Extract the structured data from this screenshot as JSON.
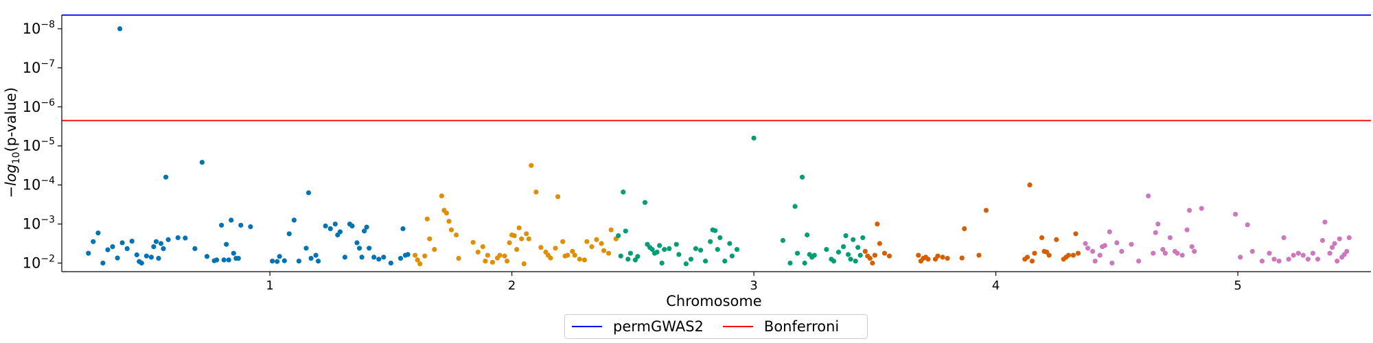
{
  "chart_data": {
    "type": "scatter",
    "title": "",
    "xlabel": "Chromosome",
    "ylabel": "-log10(p-value)",
    "yscale": "log",
    "y_tick_labels": [
      "10^-2",
      "10^-3",
      "10^-4",
      "10^-5",
      "10^-6",
      "10^-7",
      "10^-8"
    ],
    "ylim_exponent": [
      -1.78,
      -8.35
    ],
    "x_tick_labels": [
      "1",
      "2",
      "3",
      "4",
      "5"
    ],
    "x_tick_positions": [
      1,
      2,
      3,
      4,
      5
    ],
    "chromosome_ranges": [
      {
        "name": "1",
        "start": 0.24,
        "end": 1.58,
        "color": "#0173b2"
      },
      {
        "name": "2",
        "start": 1.58,
        "end": 2.62,
        "color": "#de8f05"
      },
      {
        "name": "3",
        "start": 2.62,
        "end": 3.56,
        "color": "#029e73"
      },
      {
        "name": "4",
        "start": 3.56,
        "end": 4.35,
        "color": "#d55e00"
      },
      {
        "name": "5",
        "start": 4.35,
        "end": 5.43,
        "color": "#cc78bc"
      }
    ],
    "thresholds": [
      {
        "name": "permGWAS2",
        "p_value_exponent": -8.35,
        "color": "#0000ff"
      },
      {
        "name": "Bonferroni",
        "p_value_exponent": -5.65,
        "color": "#ff0000"
      }
    ],
    "series": [
      {
        "name": "1",
        "color": "#0173b2",
        "points": [
          [
            0.25,
            -2.25
          ],
          [
            0.27,
            -2.55
          ],
          [
            0.29,
            -2.77
          ],
          [
            0.31,
            -2.0
          ],
          [
            0.33,
            -2.34
          ],
          [
            0.35,
            -2.42
          ],
          [
            0.37,
            -2.13
          ],
          [
            0.38,
            -8.0
          ],
          [
            0.39,
            -2.52
          ],
          [
            0.41,
            -2.37
          ],
          [
            0.43,
            -2.56
          ],
          [
            0.45,
            -2.21
          ],
          [
            0.46,
            -2.04
          ],
          [
            0.47,
            -2.0
          ],
          [
            0.49,
            -2.18
          ],
          [
            0.51,
            -2.15
          ],
          [
            0.52,
            -2.42
          ],
          [
            0.53,
            -2.55
          ],
          [
            0.54,
            -2.12
          ],
          [
            0.55,
            -2.5
          ],
          [
            0.56,
            -2.37
          ],
          [
            0.57,
            -4.2
          ],
          [
            0.58,
            -2.6
          ],
          [
            0.62,
            -2.65
          ],
          [
            0.65,
            -2.64
          ],
          [
            0.69,
            -2.37
          ],
          [
            0.72,
            -4.58
          ],
          [
            0.74,
            -2.17
          ],
          [
            0.77,
            -2.06
          ],
          [
            0.78,
            -2.08
          ],
          [
            0.8,
            -2.97
          ],
          [
            0.81,
            -2.08
          ],
          [
            0.82,
            -2.48
          ],
          [
            0.83,
            -2.08
          ],
          [
            0.84,
            -3.1
          ],
          [
            0.85,
            -2.25
          ],
          [
            0.86,
            -2.12
          ],
          [
            0.87,
            -2.12
          ],
          [
            0.88,
            -2.97
          ],
          [
            0.92,
            -2.93
          ],
          [
            1.01,
            -2.05
          ],
          [
            1.03,
            -2.04
          ],
          [
            1.04,
            -2.17
          ],
          [
            1.06,
            -2.06
          ],
          [
            1.08,
            -2.75
          ],
          [
            1.1,
            -3.1
          ],
          [
            1.12,
            -2.05
          ],
          [
            1.15,
            -2.38
          ],
          [
            1.16,
            -3.8
          ],
          [
            1.17,
            -2.12
          ],
          [
            1.19,
            -2.2
          ],
          [
            1.2,
            -2.05
          ],
          [
            1.23,
            -2.95
          ],
          [
            1.25,
            -2.88
          ],
          [
            1.27,
            -3.0
          ],
          [
            1.28,
            -2.72
          ],
          [
            1.29,
            -2.8
          ],
          [
            1.31,
            -2.15
          ],
          [
            1.33,
            -3.0
          ],
          [
            1.34,
            -2.95
          ],
          [
            1.36,
            -2.52
          ],
          [
            1.37,
            -2.38
          ],
          [
            1.38,
            -2.15
          ],
          [
            1.39,
            -2.82
          ],
          [
            1.4,
            -2.92
          ],
          [
            1.41,
            -2.38
          ],
          [
            1.43,
            -2.15
          ],
          [
            1.45,
            -2.1
          ],
          [
            1.47,
            -2.15
          ],
          [
            1.5,
            -2.0
          ],
          [
            1.54,
            -2.12
          ],
          [
            1.55,
            -2.88
          ],
          [
            1.56,
            -2.2
          ],
          [
            1.57,
            -2.22
          ]
        ]
      },
      {
        "name": "2",
        "color": "#de8f05",
        "points": [
          [
            1.6,
            -2.2
          ],
          [
            1.61,
            -2.08
          ],
          [
            1.62,
            -1.98
          ],
          [
            1.64,
            -2.18
          ],
          [
            1.65,
            -3.13
          ],
          [
            1.66,
            -2.62
          ],
          [
            1.68,
            -2.35
          ],
          [
            1.71,
            -3.72
          ],
          [
            1.72,
            -3.35
          ],
          [
            1.73,
            -3.28
          ],
          [
            1.74,
            -3.07
          ],
          [
            1.75,
            -2.85
          ],
          [
            1.77,
            -2.72
          ],
          [
            1.78,
            -2.12
          ],
          [
            1.84,
            -2.53
          ],
          [
            1.86,
            -2.28
          ],
          [
            1.88,
            -2.42
          ],
          [
            1.89,
            -2.05
          ],
          [
            1.9,
            -2.2
          ],
          [
            1.92,
            -2.02
          ],
          [
            1.94,
            -2.13
          ],
          [
            1.95,
            -2.2
          ],
          [
            1.97,
            -2.18
          ],
          [
            1.98,
            -2.05
          ],
          [
            1.99,
            -2.52
          ],
          [
            2.0,
            -2.72
          ],
          [
            2.01,
            -2.7
          ],
          [
            2.02,
            -2.35
          ],
          [
            2.03,
            -2.9
          ],
          [
            2.04,
            -2.62
          ],
          [
            2.05,
            -1.98
          ],
          [
            2.06,
            -2.75
          ],
          [
            2.07,
            -2.62
          ],
          [
            2.08,
            -4.5
          ],
          [
            2.1,
            -3.82
          ],
          [
            2.12,
            -2.4
          ],
          [
            2.14,
            -2.28
          ],
          [
            2.15,
            -2.2
          ],
          [
            2.16,
            -2.13
          ],
          [
            2.18,
            -2.38
          ],
          [
            2.19,
            -3.7
          ],
          [
            2.21,
            -2.55
          ],
          [
            2.22,
            -2.18
          ],
          [
            2.23,
            -2.2
          ],
          [
            2.25,
            -2.3
          ],
          [
            2.26,
            -2.2
          ],
          [
            2.28,
            -2.1
          ],
          [
            2.3,
            -2.08
          ],
          [
            2.31,
            -2.55
          ],
          [
            2.33,
            -2.42
          ],
          [
            2.35,
            -2.6
          ],
          [
            2.37,
            -2.5
          ],
          [
            2.38,
            -2.32
          ],
          [
            2.4,
            -2.25
          ],
          [
            2.41,
            -2.85
          ],
          [
            2.43,
            -2.62
          ]
        ]
      },
      {
        "name": "3",
        "color": "#029e73",
        "points": [
          [
            2.44,
            -2.7
          ],
          [
            2.45,
            -2.18
          ],
          [
            2.46,
            -3.82
          ],
          [
            2.47,
            -2.82
          ],
          [
            2.48,
            -2.1
          ],
          [
            2.49,
            -2.25
          ],
          [
            2.51,
            -2.08
          ],
          [
            2.52,
            -2.17
          ],
          [
            2.55,
            -3.55
          ],
          [
            2.56,
            -2.48
          ],
          [
            2.57,
            -2.4
          ],
          [
            2.58,
            -2.35
          ],
          [
            2.59,
            -2.25
          ],
          [
            2.6,
            -2.28
          ],
          [
            2.61,
            -2.45
          ],
          [
            2.62,
            -2.0
          ],
          [
            2.63,
            -2.35
          ],
          [
            2.65,
            -2.37
          ],
          [
            2.68,
            -2.48
          ],
          [
            2.69,
            -2.22
          ],
          [
            2.72,
            -1.98
          ],
          [
            2.74,
            -2.1
          ],
          [
            2.76,
            -2.37
          ],
          [
            2.78,
            -2.33
          ],
          [
            2.8,
            -2.05
          ],
          [
            2.82,
            -2.55
          ],
          [
            2.83,
            -2.85
          ],
          [
            2.84,
            -2.83
          ],
          [
            2.85,
            -2.35
          ],
          [
            2.86,
            -2.65
          ],
          [
            2.88,
            -2.05
          ],
          [
            2.9,
            -2.5
          ],
          [
            2.91,
            -2.18
          ],
          [
            2.93,
            -2.35
          ],
          [
            3.0,
            -5.2
          ],
          [
            3.12,
            -2.58
          ],
          [
            3.15,
            -2.0
          ],
          [
            3.17,
            -3.45
          ],
          [
            3.18,
            -2.25
          ],
          [
            3.2,
            -4.2
          ],
          [
            3.21,
            -2.0
          ],
          [
            3.22,
            -2.72
          ],
          [
            3.23,
            -2.22
          ],
          [
            3.24,
            -2.15
          ],
          [
            3.25,
            -2.2
          ],
          [
            3.3,
            -2.35
          ],
          [
            3.32,
            -2.1
          ],
          [
            3.33,
            -2.05
          ],
          [
            3.35,
            -2.28
          ],
          [
            3.37,
            -2.42
          ],
          [
            3.38,
            -2.7
          ],
          [
            3.39,
            -2.22
          ],
          [
            3.4,
            -2.1
          ],
          [
            3.41,
            -2.6
          ],
          [
            3.42,
            -2.05
          ],
          [
            3.43,
            -2.4
          ],
          [
            3.44,
            -2.2
          ],
          [
            3.45,
            -2.65
          ]
        ]
      },
      {
        "name": "4",
        "color": "#d55e00",
        "points": [
          [
            3.46,
            -2.3
          ],
          [
            3.47,
            -2.18
          ],
          [
            3.48,
            -2.12
          ],
          [
            3.49,
            -2.0
          ],
          [
            3.5,
            -2.2
          ],
          [
            3.51,
            -3.0
          ],
          [
            3.52,
            -2.5
          ],
          [
            3.54,
            -2.25
          ],
          [
            3.56,
            -2.18
          ],
          [
            3.68,
            -2.2
          ],
          [
            3.69,
            -2.05
          ],
          [
            3.7,
            -2.12
          ],
          [
            3.71,
            -2.15
          ],
          [
            3.72,
            -2.1
          ],
          [
            3.75,
            -2.1
          ],
          [
            3.76,
            -2.18
          ],
          [
            3.78,
            -2.15
          ],
          [
            3.8,
            -2.12
          ],
          [
            3.86,
            -2.13
          ],
          [
            3.87,
            -2.88
          ],
          [
            3.93,
            -2.2
          ],
          [
            3.96,
            -3.35
          ],
          [
            4.12,
            -2.1
          ],
          [
            4.13,
            -2.15
          ],
          [
            4.14,
            -4.0
          ],
          [
            4.15,
            -2.05
          ],
          [
            4.16,
            -2.25
          ],
          [
            4.19,
            -2.65
          ],
          [
            4.2,
            -2.3
          ],
          [
            4.21,
            -2.28
          ],
          [
            4.22,
            -2.2
          ],
          [
            4.25,
            -2.6
          ],
          [
            4.28,
            -2.1
          ],
          [
            4.29,
            -2.15
          ],
          [
            4.3,
            -2.2
          ],
          [
            4.32,
            -2.2
          ],
          [
            4.33,
            -2.75
          ],
          [
            4.34,
            -2.25
          ]
        ]
      },
      {
        "name": "5",
        "color": "#cc78bc",
        "points": [
          [
            4.37,
            -2.5
          ],
          [
            4.38,
            -2.38
          ],
          [
            4.4,
            -2.3
          ],
          [
            4.41,
            -2.05
          ],
          [
            4.43,
            -2.2
          ],
          [
            4.44,
            -2.42
          ],
          [
            4.45,
            -2.45
          ],
          [
            4.47,
            -2.8
          ],
          [
            4.48,
            -2.0
          ],
          [
            4.5,
            -2.52
          ],
          [
            4.52,
            -2.3
          ],
          [
            4.56,
            -2.48
          ],
          [
            4.59,
            -2.05
          ],
          [
            4.63,
            -3.72
          ],
          [
            4.65,
            -2.25
          ],
          [
            4.66,
            -2.78
          ],
          [
            4.67,
            -3.0
          ],
          [
            4.69,
            -2.35
          ],
          [
            4.7,
            -2.25
          ],
          [
            4.72,
            -2.65
          ],
          [
            4.74,
            -2.3
          ],
          [
            4.75,
            -2.25
          ],
          [
            4.77,
            -2.2
          ],
          [
            4.79,
            -2.85
          ],
          [
            4.8,
            -3.35
          ],
          [
            4.81,
            -2.42
          ],
          [
            4.82,
            -2.3
          ],
          [
            4.85,
            -3.4
          ],
          [
            4.99,
            -3.25
          ],
          [
            5.01,
            -2.15
          ],
          [
            5.04,
            -2.98
          ],
          [
            5.06,
            -2.3
          ],
          [
            5.1,
            -2.05
          ],
          [
            5.13,
            -2.25
          ],
          [
            5.15,
            -2.1
          ],
          [
            5.17,
            -2.05
          ],
          [
            5.19,
            -2.65
          ],
          [
            5.21,
            -2.1
          ],
          [
            5.23,
            -2.2
          ],
          [
            5.25,
            -2.25
          ],
          [
            5.27,
            -2.2
          ],
          [
            5.29,
            -2.1
          ],
          [
            5.31,
            -2.25
          ],
          [
            5.33,
            -2.1
          ],
          [
            5.35,
            -2.58
          ],
          [
            5.36,
            -3.05
          ],
          [
            5.38,
            -2.25
          ],
          [
            5.39,
            -2.4
          ],
          [
            5.4,
            -2.5
          ],
          [
            5.41,
            -2.05
          ],
          [
            5.42,
            -2.62
          ],
          [
            5.43,
            -2.15
          ],
          [
            5.44,
            -2.22
          ],
          [
            5.45,
            -2.3
          ],
          [
            5.46,
            -2.65
          ]
        ]
      }
    ],
    "legend": {
      "position": "bottom-center",
      "entries": [
        "permGWAS2",
        "Bonferroni"
      ]
    },
    "grid": false
  }
}
